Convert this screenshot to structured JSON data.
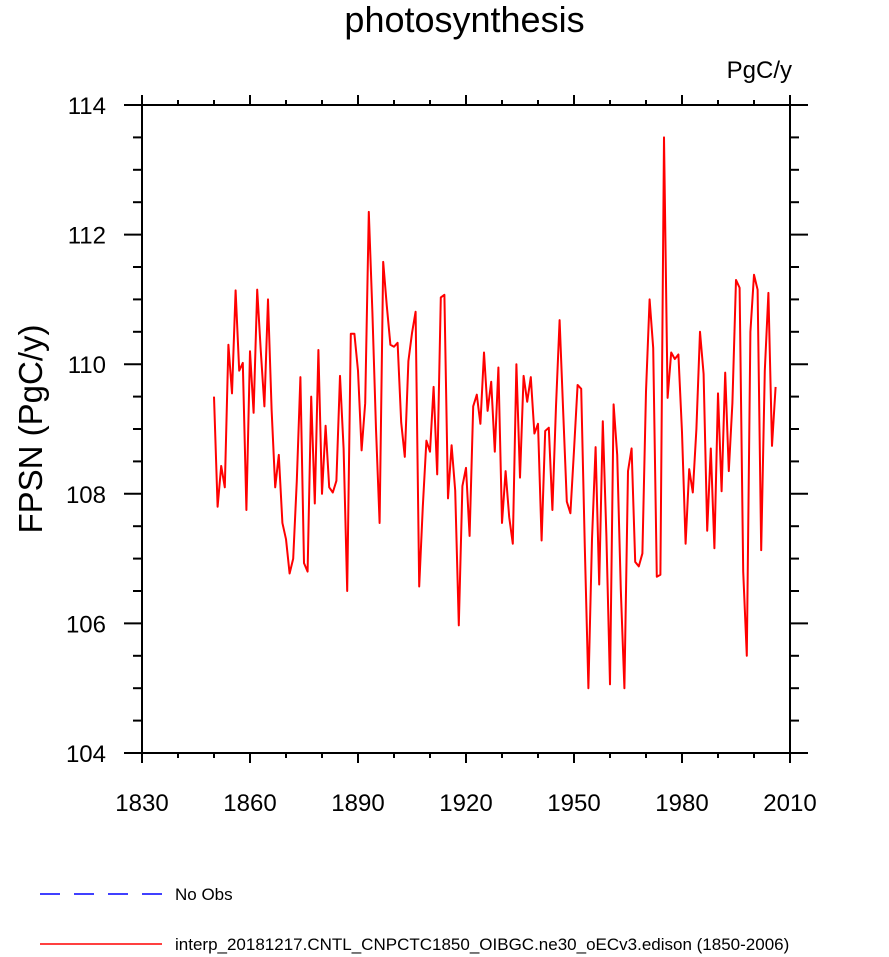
{
  "chart_data": {
    "type": "line",
    "title": "photosynthesis",
    "units_label": "PgC/y",
    "ylabel": "FPSN  (PgC/y)",
    "xlabel": "",
    "xlim": [
      1830,
      2010
    ],
    "ylim": [
      104,
      114
    ],
    "x_ticks": [
      1830,
      1860,
      1890,
      1920,
      1950,
      1980,
      2010
    ],
    "y_ticks": [
      104,
      106,
      108,
      110,
      112,
      114
    ],
    "x_minor_step": 10,
    "y_minor_step": 0.5,
    "grid": false,
    "legend_position": "bottom",
    "series": [
      {
        "name": "interp_20181217.CNTL_CNPCTC1850_OIBGC.ne30_oECv3.edison (1850-2006)",
        "color": "#ff0000",
        "style": "solid",
        "x_start": 1850,
        "x_step": 1,
        "values": [
          109.5,
          107.8,
          108.43,
          108.1,
          110.3,
          109.55,
          111.14,
          109.9,
          110.02,
          107.75,
          110.2,
          109.25,
          111.15,
          110.2,
          109.35,
          111.0,
          109.3,
          108.1,
          108.6,
          107.55,
          107.3,
          106.77,
          107.0,
          108.2,
          109.8,
          106.93,
          106.8,
          109.5,
          107.85,
          110.22,
          108.0,
          109.05,
          108.1,
          108.02,
          108.2,
          109.82,
          108.7,
          106.5,
          110.47,
          110.47,
          109.9,
          108.67,
          109.4,
          112.35,
          110.8,
          109.0,
          107.55,
          111.58,
          110.9,
          110.3,
          110.27,
          110.33,
          109.1,
          108.57,
          110.05,
          110.48,
          110.81,
          106.57,
          107.8,
          108.82,
          108.65,
          109.65,
          108.3,
          111.03,
          111.07,
          107.93,
          108.75,
          108.05,
          105.97,
          108.12,
          108.4,
          107.35,
          109.35,
          109.53,
          109.08,
          110.18,
          109.28,
          109.73,
          108.65,
          109.95,
          107.55,
          108.35,
          107.64,
          107.23,
          110.0,
          108.25,
          109.82,
          109.42,
          109.8,
          108.93,
          109.08,
          107.28,
          108.97,
          109.02,
          107.75,
          109.35,
          110.68,
          109.26,
          107.88,
          107.7,
          108.67,
          109.68,
          109.62,
          107.18,
          105.0,
          107.3,
          108.72,
          106.6,
          109.12,
          107.35,
          105.06,
          109.38,
          108.6,
          106.52,
          105.0,
          108.35,
          108.7,
          106.95,
          106.88,
          107.08,
          109.58,
          111.0,
          110.25,
          106.72,
          106.75,
          113.5,
          109.48,
          110.18,
          110.08,
          110.15,
          108.95,
          107.23,
          108.38,
          108.02,
          109.0,
          110.5,
          109.85,
          107.43,
          108.7,
          107.16,
          109.55,
          108.04,
          109.87,
          108.35,
          109.4,
          111.3,
          111.18,
          106.8,
          105.5,
          110.5,
          111.38,
          111.15,
          107.13,
          109.9,
          111.1,
          108.74,
          109.65
        ]
      }
    ],
    "legend": [
      {
        "label": "No Obs",
        "color": "#0000ff",
        "style": "dashed"
      },
      {
        "label": "interp_20181217.CNTL_CNPCTC1850_OIBGC.ne30_oECv3.edison (1850-2006)",
        "color": "#ff0000",
        "style": "solid"
      }
    ]
  }
}
